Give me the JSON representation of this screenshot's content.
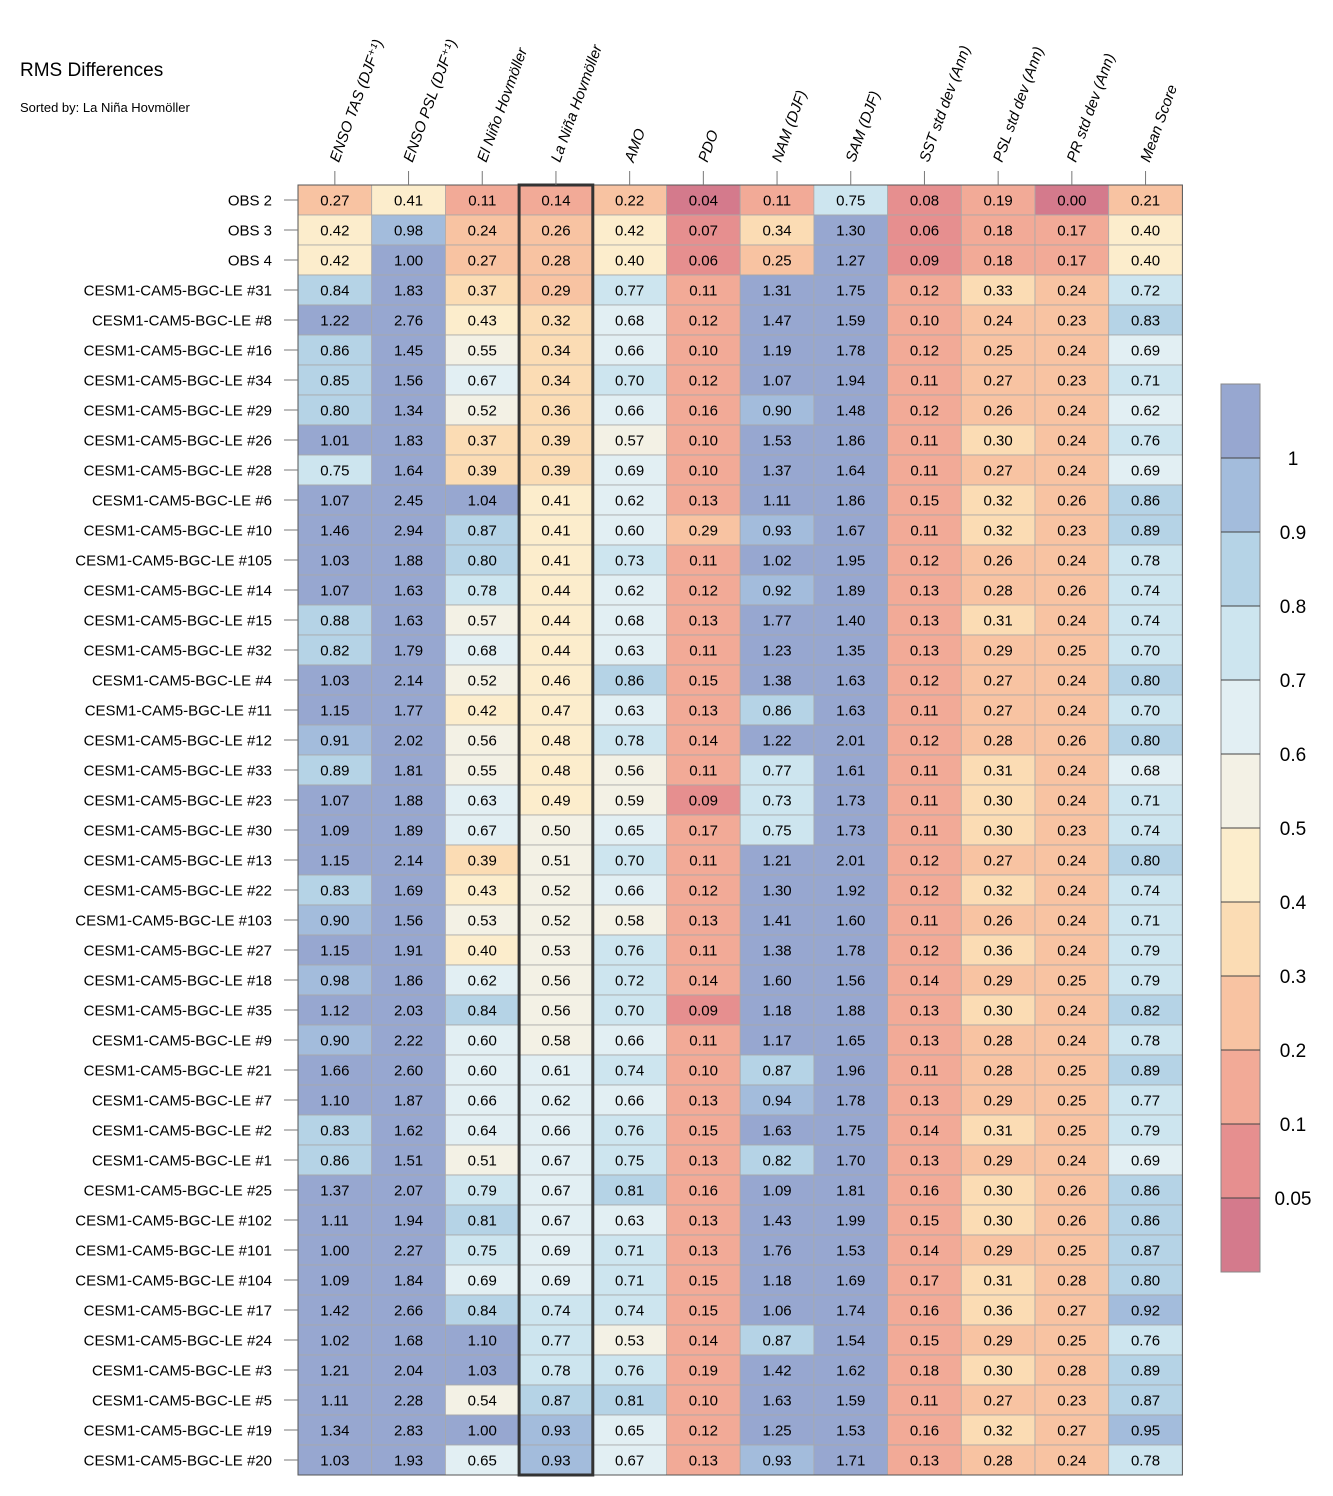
{
  "title": "RMS Differences",
  "subtitle": "Sorted by: La Niña Hovmöller",
  "chart_data": {
    "type": "heatmap",
    "columns": [
      "ENSO TAS (DJF⁺¹)",
      "ENSO PSL (DJF⁺¹)",
      "El Niño Hovmöller",
      "La Niña Hovmöller",
      "AMO",
      "PDO",
      "NAM (DJF)",
      "SAM (DJF)",
      "SST std dev (Ann)",
      "PSL std dev (Ann)",
      "PR std dev (Ann)",
      "Mean Score"
    ],
    "highlighted_column": "La Niña Hovmöller",
    "rows": [
      "OBS 2",
      "OBS 3",
      "OBS 4",
      "CESM1-CAM5-BGC-LE #31",
      "CESM1-CAM5-BGC-LE #8",
      "CESM1-CAM5-BGC-LE #16",
      "CESM1-CAM5-BGC-LE #34",
      "CESM1-CAM5-BGC-LE #29",
      "CESM1-CAM5-BGC-LE #26",
      "CESM1-CAM5-BGC-LE #28",
      "CESM1-CAM5-BGC-LE #6",
      "CESM1-CAM5-BGC-LE #10",
      "CESM1-CAM5-BGC-LE #105",
      "CESM1-CAM5-BGC-LE #14",
      "CESM1-CAM5-BGC-LE #15",
      "CESM1-CAM5-BGC-LE #32",
      "CESM1-CAM5-BGC-LE #4",
      "CESM1-CAM5-BGC-LE #11",
      "CESM1-CAM5-BGC-LE #12",
      "CESM1-CAM5-BGC-LE #33",
      "CESM1-CAM5-BGC-LE #23",
      "CESM1-CAM5-BGC-LE #30",
      "CESM1-CAM5-BGC-LE #13",
      "CESM1-CAM5-BGC-LE #22",
      "CESM1-CAM5-BGC-LE #103",
      "CESM1-CAM5-BGC-LE #27",
      "CESM1-CAM5-BGC-LE #18",
      "CESM1-CAM5-BGC-LE #35",
      "CESM1-CAM5-BGC-LE #9",
      "CESM1-CAM5-BGC-LE #21",
      "CESM1-CAM5-BGC-LE #7",
      "CESM1-CAM5-BGC-LE #2",
      "CESM1-CAM5-BGC-LE #1",
      "CESM1-CAM5-BGC-LE #25",
      "CESM1-CAM5-BGC-LE #102",
      "CESM1-CAM5-BGC-LE #101",
      "CESM1-CAM5-BGC-LE #104",
      "CESM1-CAM5-BGC-LE #17",
      "CESM1-CAM5-BGC-LE #24",
      "CESM1-CAM5-BGC-LE #3",
      "CESM1-CAM5-BGC-LE #5",
      "CESM1-CAM5-BGC-LE #19",
      "CESM1-CAM5-BGC-LE #20"
    ],
    "values": [
      [
        "0.27",
        "0.41",
        "0.11",
        "0.14",
        "0.22",
        "0.04",
        "0.11",
        "0.75",
        "0.08",
        "0.19",
        "0.00",
        "0.21"
      ],
      [
        "0.42",
        "0.98",
        "0.24",
        "0.26",
        "0.42",
        "0.07",
        "0.34",
        "1.30",
        "0.06",
        "0.18",
        "0.17",
        "0.40"
      ],
      [
        "0.42",
        "1.00",
        "0.27",
        "0.28",
        "0.40",
        "0.06",
        "0.25",
        "1.27",
        "0.09",
        "0.18",
        "0.17",
        "0.40"
      ],
      [
        "0.84",
        "1.83",
        "0.37",
        "0.29",
        "0.77",
        "0.11",
        "1.31",
        "1.75",
        "0.12",
        "0.33",
        "0.24",
        "0.72"
      ],
      [
        "1.22",
        "2.76",
        "0.43",
        "0.32",
        "0.68",
        "0.12",
        "1.47",
        "1.59",
        "0.10",
        "0.24",
        "0.23",
        "0.83"
      ],
      [
        "0.86",
        "1.45",
        "0.55",
        "0.34",
        "0.66",
        "0.10",
        "1.19",
        "1.78",
        "0.12",
        "0.25",
        "0.24",
        "0.69"
      ],
      [
        "0.85",
        "1.56",
        "0.67",
        "0.34",
        "0.70",
        "0.12",
        "1.07",
        "1.94",
        "0.11",
        "0.27",
        "0.23",
        "0.71"
      ],
      [
        "0.80",
        "1.34",
        "0.52",
        "0.36",
        "0.66",
        "0.16",
        "0.90",
        "1.48",
        "0.12",
        "0.26",
        "0.24",
        "0.62"
      ],
      [
        "1.01",
        "1.83",
        "0.37",
        "0.39",
        "0.57",
        "0.10",
        "1.53",
        "1.86",
        "0.11",
        "0.30",
        "0.24",
        "0.76"
      ],
      [
        "0.75",
        "1.64",
        "0.39",
        "0.39",
        "0.69",
        "0.10",
        "1.37",
        "1.64",
        "0.11",
        "0.27",
        "0.24",
        "0.69"
      ],
      [
        "1.07",
        "2.45",
        "1.04",
        "0.41",
        "0.62",
        "0.13",
        "1.11",
        "1.86",
        "0.15",
        "0.32",
        "0.26",
        "0.86"
      ],
      [
        "1.46",
        "2.94",
        "0.87",
        "0.41",
        "0.60",
        "0.29",
        "0.93",
        "1.67",
        "0.11",
        "0.32",
        "0.23",
        "0.89"
      ],
      [
        "1.03",
        "1.88",
        "0.80",
        "0.41",
        "0.73",
        "0.11",
        "1.02",
        "1.95",
        "0.12",
        "0.26",
        "0.24",
        "0.78"
      ],
      [
        "1.07",
        "1.63",
        "0.78",
        "0.44",
        "0.62",
        "0.12",
        "0.92",
        "1.89",
        "0.13",
        "0.28",
        "0.26",
        "0.74"
      ],
      [
        "0.88",
        "1.63",
        "0.57",
        "0.44",
        "0.68",
        "0.13",
        "1.77",
        "1.40",
        "0.13",
        "0.31",
        "0.24",
        "0.74"
      ],
      [
        "0.82",
        "1.79",
        "0.68",
        "0.44",
        "0.63",
        "0.11",
        "1.23",
        "1.35",
        "0.13",
        "0.29",
        "0.25",
        "0.70"
      ],
      [
        "1.03",
        "2.14",
        "0.52",
        "0.46",
        "0.86",
        "0.15",
        "1.38",
        "1.63",
        "0.12",
        "0.27",
        "0.24",
        "0.80"
      ],
      [
        "1.15",
        "1.77",
        "0.42",
        "0.47",
        "0.63",
        "0.13",
        "0.86",
        "1.63",
        "0.11",
        "0.27",
        "0.24",
        "0.70"
      ],
      [
        "0.91",
        "2.02",
        "0.56",
        "0.48",
        "0.78",
        "0.14",
        "1.22",
        "2.01",
        "0.12",
        "0.28",
        "0.26",
        "0.80"
      ],
      [
        "0.89",
        "1.81",
        "0.55",
        "0.48",
        "0.56",
        "0.11",
        "0.77",
        "1.61",
        "0.11",
        "0.31",
        "0.24",
        "0.68"
      ],
      [
        "1.07",
        "1.88",
        "0.63",
        "0.49",
        "0.59",
        "0.09",
        "0.73",
        "1.73",
        "0.11",
        "0.30",
        "0.24",
        "0.71"
      ],
      [
        "1.09",
        "1.89",
        "0.67",
        "0.50",
        "0.65",
        "0.17",
        "0.75",
        "1.73",
        "0.11",
        "0.30",
        "0.23",
        "0.74"
      ],
      [
        "1.15",
        "2.14",
        "0.39",
        "0.51",
        "0.70",
        "0.11",
        "1.21",
        "2.01",
        "0.12",
        "0.27",
        "0.24",
        "0.80"
      ],
      [
        "0.83",
        "1.69",
        "0.43",
        "0.52",
        "0.66",
        "0.12",
        "1.30",
        "1.92",
        "0.12",
        "0.32",
        "0.24",
        "0.74"
      ],
      [
        "0.90",
        "1.56",
        "0.53",
        "0.52",
        "0.58",
        "0.13",
        "1.41",
        "1.60",
        "0.11",
        "0.26",
        "0.24",
        "0.71"
      ],
      [
        "1.15",
        "1.91",
        "0.40",
        "0.53",
        "0.76",
        "0.11",
        "1.38",
        "1.78",
        "0.12",
        "0.36",
        "0.24",
        "0.79"
      ],
      [
        "0.98",
        "1.86",
        "0.62",
        "0.56",
        "0.72",
        "0.14",
        "1.60",
        "1.56",
        "0.14",
        "0.29",
        "0.25",
        "0.79"
      ],
      [
        "1.12",
        "2.03",
        "0.84",
        "0.56",
        "0.70",
        "0.09",
        "1.18",
        "1.88",
        "0.13",
        "0.30",
        "0.24",
        "0.82"
      ],
      [
        "0.90",
        "2.22",
        "0.60",
        "0.58",
        "0.66",
        "0.11",
        "1.17",
        "1.65",
        "0.13",
        "0.28",
        "0.24",
        "0.78"
      ],
      [
        "1.66",
        "2.60",
        "0.60",
        "0.61",
        "0.74",
        "0.10",
        "0.87",
        "1.96",
        "0.11",
        "0.28",
        "0.25",
        "0.89"
      ],
      [
        "1.10",
        "1.87",
        "0.66",
        "0.62",
        "0.66",
        "0.13",
        "0.94",
        "1.78",
        "0.13",
        "0.29",
        "0.25",
        "0.77"
      ],
      [
        "0.83",
        "1.62",
        "0.64",
        "0.66",
        "0.76",
        "0.15",
        "1.63",
        "1.75",
        "0.14",
        "0.31",
        "0.25",
        "0.79"
      ],
      [
        "0.86",
        "1.51",
        "0.51",
        "0.67",
        "0.75",
        "0.13",
        "0.82",
        "1.70",
        "0.13",
        "0.29",
        "0.24",
        "0.69"
      ],
      [
        "1.37",
        "2.07",
        "0.79",
        "0.67",
        "0.81",
        "0.16",
        "1.09",
        "1.81",
        "0.16",
        "0.30",
        "0.26",
        "0.86"
      ],
      [
        "1.11",
        "1.94",
        "0.81",
        "0.67",
        "0.63",
        "0.13",
        "1.43",
        "1.99",
        "0.15",
        "0.30",
        "0.26",
        "0.86"
      ],
      [
        "1.00",
        "2.27",
        "0.75",
        "0.69",
        "0.71",
        "0.13",
        "1.76",
        "1.53",
        "0.14",
        "0.29",
        "0.25",
        "0.87"
      ],
      [
        "1.09",
        "1.84",
        "0.69",
        "0.69",
        "0.71",
        "0.15",
        "1.18",
        "1.69",
        "0.17",
        "0.31",
        "0.28",
        "0.80"
      ],
      [
        "1.42",
        "2.66",
        "0.84",
        "0.74",
        "0.74",
        "0.15",
        "1.06",
        "1.74",
        "0.16",
        "0.36",
        "0.27",
        "0.92"
      ],
      [
        "1.02",
        "1.68",
        "1.10",
        "0.77",
        "0.53",
        "0.14",
        "0.87",
        "1.54",
        "0.15",
        "0.29",
        "0.25",
        "0.76"
      ],
      [
        "1.21",
        "2.04",
        "1.03",
        "0.78",
        "0.76",
        "0.19",
        "1.42",
        "1.62",
        "0.18",
        "0.30",
        "0.28",
        "0.89"
      ],
      [
        "1.11",
        "2.28",
        "0.54",
        "0.87",
        "0.81",
        "0.10",
        "1.63",
        "1.59",
        "0.11",
        "0.27",
        "0.23",
        "0.87"
      ],
      [
        "1.34",
        "2.83",
        "1.00",
        "0.93",
        "0.65",
        "0.12",
        "1.25",
        "1.53",
        "0.16",
        "0.32",
        "0.27",
        "0.95"
      ],
      [
        "1.03",
        "1.93",
        "0.65",
        "0.93",
        "0.67",
        "0.13",
        "0.93",
        "1.71",
        "0.13",
        "0.28",
        "0.24",
        "0.78"
      ]
    ],
    "colorbar": {
      "levels": [
        0.05,
        0.1,
        0.2,
        0.3,
        0.4,
        0.5,
        0.6,
        0.7,
        0.8,
        0.9,
        1
      ],
      "labels": [
        "0.05",
        "0.1",
        "0.2",
        "0.3",
        "0.4",
        "0.5",
        "0.6",
        "0.7",
        "0.8",
        "0.9",
        "1"
      ],
      "colors": [
        "#d47a8c",
        "#e68f8f",
        "#f2aa97",
        "#f8c3a2",
        "#fbdcb4",
        "#fcedcc",
        "#f3f1e5",
        "#e2eff3",
        "#cde5ef",
        "#b5d3e6",
        "#a3bcdc",
        "#97a7d0"
      ]
    }
  }
}
